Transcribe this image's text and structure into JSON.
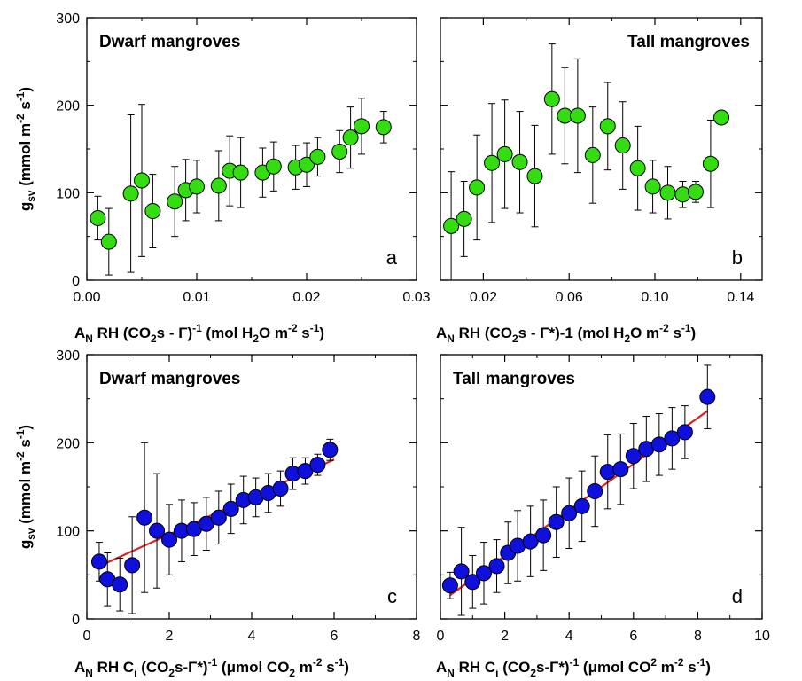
{
  "figure": {
    "ylabel_top": "g_sv (mmol m^-2 s^-1)",
    "ylabel_bottom": "g_sv (mmol m^-2 s^-1)"
  },
  "chart_data": [
    {
      "id": "a",
      "type": "scatter",
      "title": "Dwarf mangroves",
      "panel_label": "a",
      "xlabel": "A_N RH (CO_2s - Γ)^-1  (mol H_2O m^-2 s^-1)",
      "ylabel": "g_sv (mmol m^-2 s^-1)",
      "xlim": [
        0.0,
        0.03
      ],
      "ylim": [
        0,
        300
      ],
      "xticks": [
        0.0,
        0.01,
        0.02,
        0.03
      ],
      "xtick_labels": [
        "0.00",
        "0.01",
        "0.02",
        "0.03"
      ],
      "yticks": [
        0,
        100,
        200,
        300
      ],
      "ytick_labels": [
        "0",
        "100",
        "200",
        "300"
      ],
      "marker_color": "#33dd11",
      "series": [
        {
          "x": [
            0.001,
            0.002,
            0.004,
            0.005,
            0.006,
            0.008,
            0.009,
            0.01,
            0.012,
            0.013,
            0.014,
            0.016,
            0.017,
            0.019,
            0.02,
            0.021,
            0.023,
            0.024,
            0.025,
            0.027
          ],
          "y": [
            71,
            44,
            99,
            114,
            79,
            90,
            103,
            107,
            108,
            125,
            123,
            123,
            130,
            129,
            132,
            141,
            147,
            163,
            176,
            175
          ],
          "err": [
            25,
            38,
            90,
            87,
            42,
            40,
            35,
            30,
            40,
            40,
            40,
            28,
            28,
            25,
            25,
            22,
            24,
            35,
            32,
            18
          ]
        }
      ]
    },
    {
      "id": "b",
      "type": "scatter",
      "title": "Tall mangroves",
      "panel_label": "b",
      "xlabel": "A_N RH (CO_2s - Γ*)-1  (mol H_2O m^-2 s^-1)",
      "xlim": [
        0.0,
        0.15
      ],
      "ylim": [
        0,
        300
      ],
      "xticks": [
        0.02,
        0.06,
        0.1,
        0.14
      ],
      "xtick_labels": [
        "0.02",
        "0.06",
        "0.10",
        "0.14"
      ],
      "yticks": [
        0,
        100,
        200,
        300
      ],
      "ytick_labels": [
        "",
        "",
        "",
        ""
      ],
      "marker_color": "#33dd11",
      "series": [
        {
          "x": [
            0.005,
            0.011,
            0.017,
            0.024,
            0.03,
            0.037,
            0.044,
            0.052,
            0.058,
            0.064,
            0.071,
            0.078,
            0.085,
            0.092,
            0.099,
            0.106,
            0.113,
            0.119,
            0.126,
            0.131
          ],
          "y": [
            62,
            70,
            106,
            134,
            144,
            135,
            119,
            207,
            188,
            188,
            143,
            176,
            154,
            128,
            107,
            100,
            98,
            101,
            133,
            186
          ],
          "err": [
            62,
            43,
            60,
            68,
            62,
            58,
            58,
            63,
            55,
            65,
            55,
            50,
            50,
            48,
            30,
            30,
            15,
            12,
            50,
            0
          ]
        }
      ]
    },
    {
      "id": "c",
      "type": "scatter",
      "title": "Dwarf mangroves",
      "panel_label": "c",
      "xlabel": "A_N RH C_i (CO_2s-Γ*)^-1 (μmol CO_2 m^-2 s^-1)",
      "ylabel": "g_sv (mmol m^-2 s^-1)",
      "xlim": [
        0,
        8
      ],
      "ylim": [
        0,
        300
      ],
      "xticks": [
        0,
        2,
        4,
        6,
        8
      ],
      "xtick_labels": [
        "0",
        "2",
        "4",
        "6",
        "8"
      ],
      "yticks": [
        0,
        100,
        200,
        300
      ],
      "ytick_labels": [
        "0",
        "100",
        "200",
        "300"
      ],
      "marker_color": "#1010dd",
      "fit_color": "#dd2222",
      "fit_line": {
        "x": [
          0.4,
          6.0
        ],
        "y": [
          62,
          181
        ]
      },
      "series": [
        {
          "x": [
            0.3,
            0.5,
            0.8,
            1.1,
            1.4,
            1.7,
            2.0,
            2.3,
            2.6,
            2.9,
            3.2,
            3.5,
            3.8,
            4.1,
            4.4,
            4.7,
            5.0,
            5.3,
            5.6,
            5.9
          ],
          "y": [
            65,
            45,
            39,
            61,
            115,
            100,
            90,
            100,
            102,
            108,
            115,
            125,
            135,
            138,
            143,
            148,
            165,
            168,
            175,
            192
          ],
          "err": [
            22,
            30,
            30,
            55,
            85,
            65,
            40,
            35,
            30,
            30,
            30,
            28,
            27,
            22,
            22,
            20,
            18,
            15,
            12,
            12
          ]
        }
      ]
    },
    {
      "id": "d",
      "type": "scatter",
      "title": "Tall mangroves",
      "panel_label": "d",
      "xlabel": "A_N RH C_i (CO_2s-Γ*)^-1 (μmol CO^2 m^-2 s^-1)",
      "xlim": [
        0,
        10
      ],
      "ylim": [
        0,
        300
      ],
      "xticks": [
        0,
        2,
        4,
        6,
        8,
        10
      ],
      "xtick_labels": [
        "0",
        "2",
        "4",
        "6",
        "8",
        "10"
      ],
      "yticks": [
        0,
        100,
        200,
        300
      ],
      "ytick_labels": [
        "",
        "",
        "",
        ""
      ],
      "marker_color": "#1010dd",
      "fit_color": "#dd2222",
      "fit_line": {
        "x": [
          0.3,
          8.3
        ],
        "y": [
          27,
          236
        ]
      },
      "series": [
        {
          "x": [
            0.3,
            0.65,
            1.0,
            1.35,
            1.75,
            2.1,
            2.4,
            2.8,
            3.2,
            3.6,
            4.0,
            4.4,
            4.8,
            5.2,
            5.6,
            6.0,
            6.4,
            6.8,
            7.2,
            7.6,
            8.3
          ],
          "y": [
            38,
            54,
            42,
            52,
            60,
            75,
            83,
            88,
            95,
            110,
            120,
            128,
            145,
            167,
            170,
            185,
            193,
            198,
            205,
            212,
            252
          ],
          "err": [
            15,
            50,
            30,
            35,
            30,
            35,
            40,
            40,
            40,
            40,
            40,
            40,
            40,
            42,
            40,
            37,
            37,
            35,
            35,
            30,
            36
          ]
        }
      ]
    }
  ]
}
